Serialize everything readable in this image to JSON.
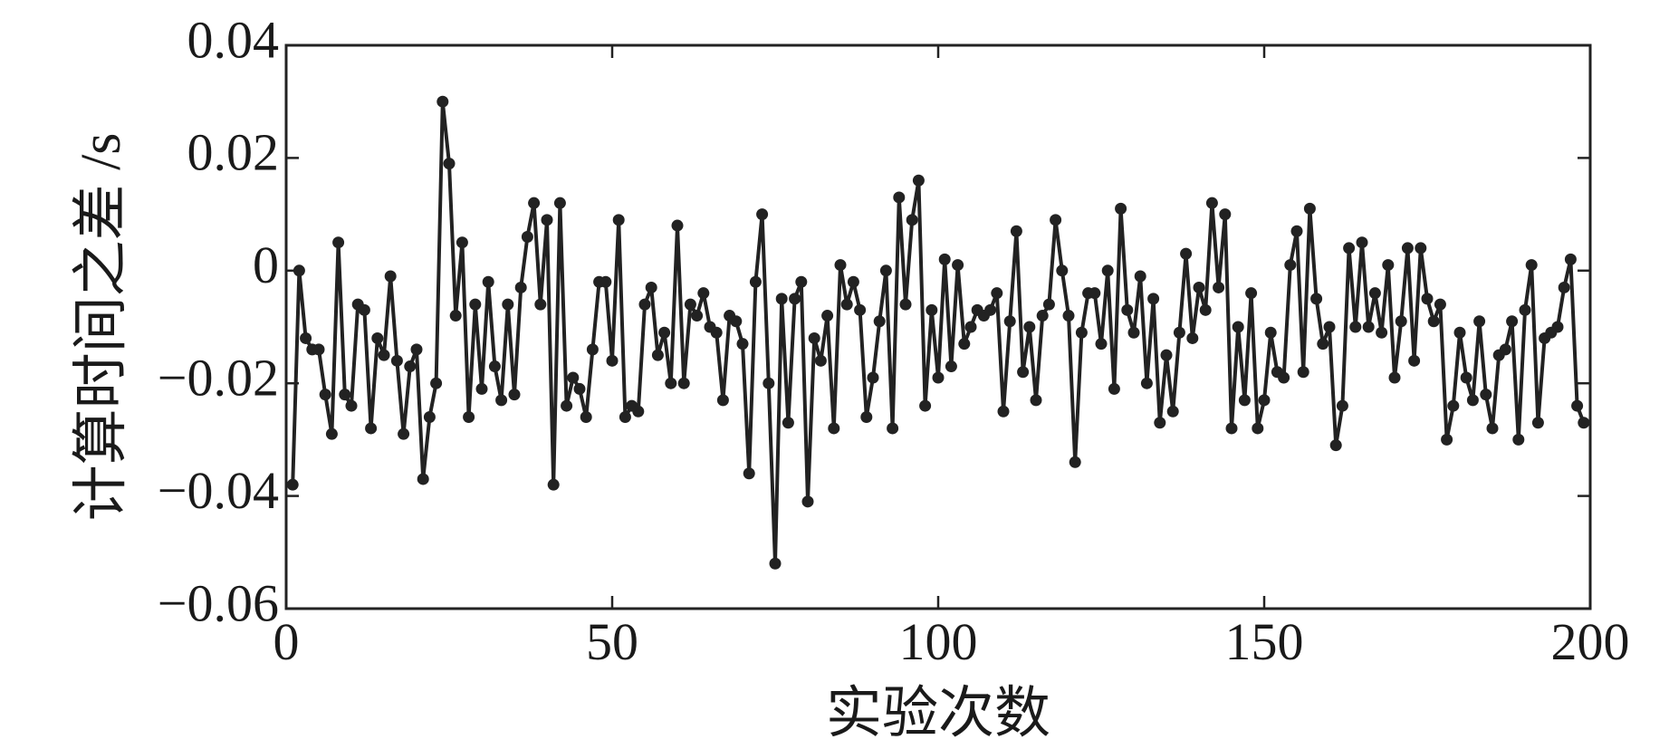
{
  "chart_data": {
    "type": "line",
    "x_label": "实验次数",
    "y_label": "计算时间之差 /s",
    "xlim": [
      0,
      200
    ],
    "xticks": [
      0,
      50,
      100,
      150,
      200
    ],
    "ylim": [
      -0.06,
      0.04
    ],
    "yticks": [
      {
        "value": -0.06,
        "label": "−0.06"
      },
      {
        "value": -0.04,
        "label": "−0.04"
      },
      {
        "value": -0.02,
        "label": "−0.02"
      },
      0,
      0.02,
      0.04
    ],
    "x": [
      1,
      2,
      3,
      4,
      5,
      6,
      7,
      8,
      9,
      10,
      11,
      12,
      13,
      14,
      15,
      16,
      17,
      18,
      19,
      20,
      21,
      22,
      23,
      24,
      25,
      26,
      27,
      28,
      29,
      30,
      31,
      32,
      33,
      34,
      35,
      36,
      37,
      38,
      39,
      40,
      41,
      42,
      43,
      44,
      45,
      46,
      47,
      48,
      49,
      50,
      51,
      52,
      53,
      54,
      55,
      56,
      57,
      58,
      59,
      60,
      61,
      62,
      63,
      64,
      65,
      66,
      67,
      68,
      69,
      70,
      71,
      72,
      73,
      74,
      75,
      76,
      77,
      78,
      79,
      80,
      81,
      82,
      83,
      84,
      85,
      86,
      87,
      88,
      89,
      90,
      91,
      92,
      93,
      94,
      95,
      96,
      97,
      98,
      99,
      100,
      101,
      102,
      103,
      104,
      105,
      106,
      107,
      108,
      109,
      110,
      111,
      112,
      113,
      114,
      115,
      116,
      117,
      118,
      119,
      120,
      121,
      122,
      123,
      124,
      125,
      126,
      127,
      128,
      129,
      130,
      131,
      132,
      133,
      134,
      135,
      136,
      137,
      138,
      139,
      140,
      141,
      142,
      143,
      144,
      145,
      146,
      147,
      148,
      149,
      150,
      151,
      152,
      153,
      154,
      155,
      156,
      157,
      158,
      159,
      160,
      161,
      162,
      163,
      164,
      165,
      166,
      167,
      168,
      169,
      170,
      171,
      172,
      173,
      174,
      175,
      176,
      177,
      178,
      179,
      180,
      181,
      182,
      183,
      184,
      185,
      186,
      187,
      188,
      189,
      190,
      191,
      192,
      193,
      194,
      195,
      196,
      197,
      198,
      199
    ],
    "series": [
      {
        "color": "#222222",
        "values": [
          -0.038,
          0,
          -0.012,
          -0.014,
          -0.014,
          -0.022,
          -0.029,
          0.005,
          -0.022,
          -0.024,
          -0.006,
          -0.007,
          -0.028,
          -0.012,
          -0.015,
          -0.001,
          -0.016,
          -0.029,
          -0.017,
          -0.014,
          -0.037,
          -0.026,
          -0.02,
          0.03,
          0.019,
          -0.008,
          0.005,
          -0.026,
          -0.006,
          -0.021,
          -0.002,
          -0.017,
          -0.023,
          -0.006,
          -0.022,
          -0.003,
          0.006,
          0.012,
          -0.006,
          0.009,
          -0.038,
          0.012,
          -0.024,
          -0.019,
          -0.021,
          -0.026,
          -0.014,
          -0.002,
          -0.002,
          -0.016,
          0.009,
          -0.026,
          -0.024,
          -0.025,
          -0.006,
          -0.003,
          -0.015,
          -0.011,
          -0.02,
          0.008,
          -0.02,
          -0.006,
          -0.008,
          -0.004,
          -0.01,
          -0.011,
          -0.023,
          -0.008,
          -0.009,
          -0.013,
          -0.036,
          -0.002,
          0.01,
          -0.02,
          -0.052,
          -0.005,
          -0.027,
          -0.005,
          -0.002,
          -0.041,
          -0.012,
          -0.016,
          -0.008,
          -0.028,
          0.001,
          -0.006,
          -0.002,
          -0.007,
          -0.026,
          -0.019,
          -0.009,
          0,
          -0.028,
          0.013,
          -0.006,
          0.009,
          0.016,
          -0.024,
          -0.007,
          -0.019,
          0.002,
          -0.017,
          0.001,
          -0.013,
          -0.01,
          -0.007,
          -0.008,
          -0.007,
          -0.004,
          -0.025,
          -0.009,
          0.007,
          -0.018,
          -0.01,
          -0.023,
          -0.008,
          -0.006,
          0.009,
          0,
          -0.008,
          -0.034,
          -0.011,
          -0.004,
          -0.004,
          -0.013,
          0,
          -0.021,
          0.011,
          -0.007,
          -0.011,
          -0.001,
          -0.02,
          -0.005,
          -0.027,
          -0.015,
          -0.025,
          -0.011,
          0.003,
          -0.012,
          -0.003,
          -0.007,
          0.012,
          -0.003,
          0.01,
          -0.028,
          -0.01,
          -0.023,
          -0.004,
          -0.028,
          -0.023,
          -0.011,
          -0.018,
          -0.019,
          0.001,
          0.007,
          -0.018,
          0.011,
          -0.005,
          -0.013,
          -0.01,
          -0.031,
          -0.024,
          0.004,
          -0.01,
          0.005,
          -0.01,
          -0.004,
          -0.011,
          0.001,
          -0.019,
          -0.009,
          0.004,
          -0.016,
          0.004,
          -0.005,
          -0.009,
          -0.006,
          -0.03,
          -0.024,
          -0.011,
          -0.019,
          -0.023,
          -0.009,
          -0.022,
          -0.028,
          -0.015,
          -0.014,
          -0.009,
          -0.03,
          -0.007,
          0.001,
          -0.027,
          -0.012,
          -0.011,
          -0.01,
          -0.003,
          0.002,
          -0.024,
          -0.027
        ]
      }
    ]
  }
}
